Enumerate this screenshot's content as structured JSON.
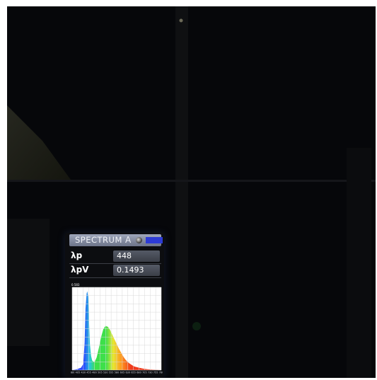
{
  "meter": {
    "header_title": "SPECTRUM",
    "header_mode_glyph": "A",
    "readings": [
      {
        "label": "λp",
        "value": "448"
      },
      {
        "label": "λpV",
        "value": "0.1493"
      }
    ],
    "ymax_label": "0.583"
  },
  "chart_data": {
    "type": "area",
    "xlabel": "",
    "ylabel": "",
    "x_ticks": [
      380,
      405,
      430,
      455,
      480,
      505,
      530,
      555,
      580,
      605,
      630,
      655,
      680,
      705,
      730,
      755,
      780
    ],
    "x": [
      380,
      400,
      420,
      430,
      436,
      440,
      445,
      448,
      452,
      456,
      460,
      465,
      470,
      480,
      490,
      500,
      510,
      520,
      530,
      540,
      550,
      560,
      570,
      580,
      590,
      600,
      610,
      620,
      630,
      640,
      650,
      660,
      680,
      700,
      720,
      740,
      760,
      780
    ],
    "values": [
      0.0,
      0.01,
      0.03,
      0.08,
      0.35,
      0.78,
      0.97,
      1.0,
      0.93,
      0.6,
      0.32,
      0.18,
      0.12,
      0.1,
      0.16,
      0.28,
      0.42,
      0.52,
      0.56,
      0.55,
      0.51,
      0.45,
      0.39,
      0.33,
      0.27,
      0.22,
      0.17,
      0.13,
      0.1,
      0.08,
      0.06,
      0.045,
      0.03,
      0.018,
      0.01,
      0.006,
      0.003,
      0.0
    ],
    "xlim": [
      380,
      780
    ],
    "ylim": [
      0,
      1.05
    ],
    "grid": true,
    "colors": {
      "blue": "#2b45ff",
      "cyan": "#25c8d8",
      "green": "#3de04a",
      "yellow": "#e8e832",
      "orange": "#ff9a1e",
      "red": "#f03a1c",
      "grid": "#d8d8d8",
      "background": "#ffffff"
    }
  }
}
